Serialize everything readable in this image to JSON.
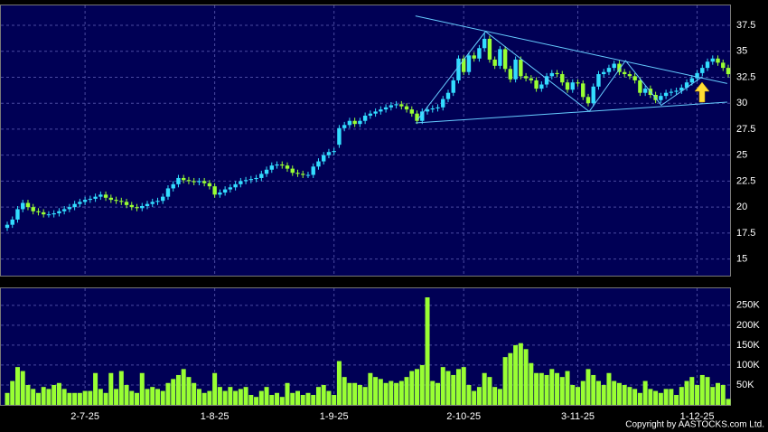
{
  "chart_data": {
    "type": "candlestick",
    "categories": [
      null,
      null,
      null,
      null,
      null,
      null,
      null,
      null,
      null,
      null,
      null,
      null,
      null,
      null,
      null,
      "2-7-25",
      null,
      null,
      null,
      null,
      null,
      null,
      null,
      null,
      null,
      null,
      null,
      null,
      null,
      null,
      null,
      null,
      null,
      null,
      null,
      null,
      null,
      null,
      null,
      null,
      "1-8-25",
      null,
      null,
      null,
      null,
      null,
      null,
      null,
      null,
      null,
      null,
      null,
      null,
      null,
      null,
      null,
      null,
      null,
      null,
      null,
      null,
      null,
      null,
      "1-9-25",
      null,
      null,
      null,
      null,
      null,
      null,
      null,
      null,
      null,
      null,
      null,
      null,
      null,
      null,
      null,
      null,
      null,
      null,
      null,
      null,
      null,
      null,
      null,
      null,
      "2-10-25",
      null,
      null,
      null,
      null,
      null,
      null,
      null,
      null,
      null,
      null,
      null,
      null,
      null,
      null,
      null,
      null,
      null,
      null,
      null,
      null,
      null,
      "3-11-25",
      null,
      null,
      null,
      null,
      null,
      null,
      null,
      null,
      null,
      null,
      null,
      null,
      null,
      null,
      null,
      null,
      null,
      null,
      null,
      null,
      null,
      null,
      "1-12-25",
      null,
      null,
      null,
      null,
      null,
      null
    ],
    "open": [
      18.0,
      18.3,
      18.8,
      19.8,
      20.4,
      20.0,
      19.6,
      19.5,
      19.3,
      19.3,
      19.4,
      19.6,
      19.8,
      20.0,
      20.3,
      20.5,
      20.7,
      20.8,
      21.0,
      21.2,
      20.9,
      20.7,
      20.6,
      20.5,
      20.2,
      20.0,
      19.9,
      20.1,
      20.3,
      20.5,
      20.6,
      21.0,
      21.8,
      22.2,
      22.8,
      22.6,
      22.5,
      22.4,
      22.5,
      22.3,
      22.0,
      21.2,
      21.4,
      21.7,
      21.9,
      22.2,
      22.5,
      22.6,
      22.7,
      22.8,
      23.2,
      23.6,
      24.0,
      24.1,
      24.0,
      23.7,
      23.3,
      23.2,
      23.1,
      23.1,
      23.9,
      24.4,
      25.0,
      25.3,
      26.0,
      27.6,
      27.9,
      28.3,
      28.0,
      28.3,
      28.8,
      29.0,
      29.2,
      29.4,
      29.6,
      29.8,
      29.9,
      29.7,
      29.4,
      29.0,
      28.3,
      29.2,
      29.4,
      29.5,
      29.6,
      30.4,
      31.0,
      32.2,
      34.3,
      33.0,
      34.6,
      34.3,
      35.3,
      36.2,
      34.2,
      33.6,
      35.2,
      33.3,
      32.3,
      34.2,
      32.6,
      32.4,
      32.2,
      31.4,
      31.8,
      32.6,
      32.9,
      32.8,
      32.0,
      31.3,
      32.0,
      31.9,
      30.6,
      30.0,
      31.6,
      32.8,
      33.0,
      33.4,
      33.8,
      33.0,
      32.8,
      32.6,
      32.2,
      31.0,
      31.4,
      30.8,
      30.3,
      30.7,
      31.0,
      31.1,
      31.2,
      31.5,
      32.0,
      32.4,
      32.9,
      33.4,
      34.0,
      34.3,
      33.9,
      33.4
    ],
    "high": [
      18.6,
      19.1,
      20.1,
      20.7,
      20.7,
      20.3,
      19.9,
      19.8,
      19.6,
      19.7,
      19.9,
      20.1,
      20.3,
      20.6,
      20.8,
      21.0,
      21.1,
      21.3,
      21.5,
      21.5,
      21.2,
      21.0,
      20.9,
      20.8,
      20.5,
      20.3,
      20.4,
      20.6,
      20.8,
      20.9,
      21.3,
      22.1,
      22.5,
      23.1,
      23.1,
      22.9,
      22.8,
      22.8,
      22.8,
      22.6,
      22.3,
      21.7,
      22.0,
      22.2,
      22.5,
      22.8,
      22.9,
      23.0,
      23.1,
      23.5,
      23.9,
      24.3,
      24.4,
      24.4,
      24.3,
      24.0,
      23.6,
      23.5,
      23.4,
      24.2,
      24.7,
      25.3,
      25.6,
      25.7,
      27.9,
      28.2,
      28.6,
      28.6,
      28.6,
      29.1,
      29.3,
      29.5,
      29.7,
      29.9,
      30.1,
      30.2,
      30.2,
      30.0,
      29.7,
      29.3,
      29.5,
      29.7,
      29.8,
      29.9,
      30.7,
      31.3,
      32.5,
      34.6,
      34.6,
      34.9,
      34.9,
      35.6,
      36.8,
      36.5,
      34.5,
      35.5,
      35.5,
      33.6,
      34.5,
      34.5,
      32.9,
      32.7,
      32.5,
      32.1,
      32.9,
      33.2,
      33.2,
      33.1,
      32.3,
      32.3,
      32.3,
      32.2,
      30.9,
      31.9,
      33.1,
      33.3,
      33.7,
      34.1,
      34.1,
      33.3,
      33.1,
      32.9,
      32.5,
      31.7,
      31.7,
      31.1,
      31.0,
      31.3,
      31.4,
      31.5,
      31.8,
      32.3,
      32.7,
      33.2,
      33.7,
      34.3,
      34.6,
      34.6,
      34.2,
      33.7
    ],
    "low": [
      17.7,
      18.0,
      18.5,
      19.5,
      19.7,
      19.3,
      19.2,
      19.0,
      19.0,
      19.0,
      19.1,
      19.3,
      19.5,
      19.7,
      20.0,
      20.2,
      20.4,
      20.5,
      20.7,
      20.6,
      20.4,
      20.3,
      20.2,
      19.9,
      19.7,
      19.6,
      19.6,
      19.8,
      20.0,
      20.2,
      20.3,
      20.7,
      21.5,
      21.9,
      22.3,
      22.2,
      22.1,
      22.1,
      22.0,
      21.7,
      20.9,
      20.9,
      21.1,
      21.4,
      21.6,
      21.9,
      22.2,
      22.3,
      22.4,
      22.5,
      22.9,
      23.3,
      23.7,
      23.7,
      23.4,
      23.0,
      22.9,
      22.8,
      22.8,
      22.8,
      23.6,
      24.1,
      24.7,
      25.0,
      25.7,
      27.3,
      27.6,
      27.7,
      27.7,
      28.0,
      28.5,
      28.7,
      28.9,
      29.1,
      29.3,
      29.5,
      29.4,
      29.1,
      28.7,
      28.0,
      28.0,
      28.9,
      29.1,
      29.2,
      29.3,
      30.1,
      30.7,
      31.9,
      32.7,
      32.7,
      34.0,
      34.0,
      35.0,
      33.9,
      33.3,
      33.3,
      33.0,
      32.0,
      32.0,
      32.3,
      32.1,
      31.9,
      31.1,
      31.1,
      31.5,
      32.3,
      32.5,
      31.7,
      31.0,
      31.0,
      31.6,
      30.3,
      29.7,
      29.7,
      31.3,
      32.5,
      32.7,
      33.1,
      32.7,
      32.5,
      32.3,
      31.9,
      30.7,
      30.7,
      30.5,
      30.0,
      30.0,
      30.4,
      30.7,
      30.8,
      30.9,
      31.2,
      31.7,
      32.1,
      32.6,
      33.1,
      33.7,
      33.6,
      33.1,
      32.5
    ],
    "close": [
      18.3,
      18.8,
      19.8,
      20.4,
      20.0,
      19.6,
      19.5,
      19.3,
      19.3,
      19.4,
      19.6,
      19.8,
      20.0,
      20.3,
      20.5,
      20.7,
      20.8,
      21.0,
      21.2,
      20.9,
      20.7,
      20.6,
      20.5,
      20.2,
      20.0,
      19.9,
      20.1,
      20.3,
      20.5,
      20.6,
      21.0,
      21.8,
      22.2,
      22.8,
      22.6,
      22.5,
      22.4,
      22.5,
      22.3,
      22.0,
      21.2,
      21.4,
      21.7,
      21.9,
      22.2,
      22.5,
      22.6,
      22.7,
      22.8,
      23.2,
      23.6,
      24.0,
      24.1,
      24.0,
      23.7,
      23.3,
      23.2,
      23.1,
      23.1,
      23.9,
      24.4,
      25.0,
      25.3,
      25.4,
      27.6,
      27.9,
      28.3,
      28.0,
      28.3,
      28.8,
      29.0,
      29.2,
      29.4,
      29.6,
      29.8,
      29.9,
      29.7,
      29.4,
      29.0,
      28.3,
      29.2,
      29.4,
      29.5,
      29.6,
      30.4,
      31.0,
      32.2,
      34.3,
      33.0,
      34.6,
      34.3,
      35.3,
      36.2,
      34.2,
      33.6,
      35.2,
      33.3,
      32.3,
      34.2,
      32.6,
      32.4,
      32.2,
      31.4,
      31.8,
      32.6,
      32.9,
      32.8,
      32.0,
      31.3,
      32.0,
      31.9,
      30.6,
      30.0,
      31.6,
      32.8,
      33.0,
      33.4,
      33.8,
      33.0,
      32.8,
      32.6,
      32.2,
      31.0,
      31.4,
      30.8,
      30.3,
      30.7,
      31.0,
      31.1,
      31.2,
      31.5,
      32.0,
      32.4,
      32.9,
      33.4,
      34.0,
      34.3,
      33.9,
      33.4,
      32.8
    ],
    "volume": [
      30000,
      60000,
      95000,
      85000,
      50000,
      40000,
      30000,
      45000,
      40000,
      50000,
      55000,
      40000,
      30000,
      30000,
      30000,
      35000,
      35000,
      80000,
      40000,
      30000,
      80000,
      40000,
      85000,
      50000,
      35000,
      30000,
      80000,
      40000,
      45000,
      40000,
      35000,
      55000,
      65000,
      75000,
      90000,
      70000,
      55000,
      40000,
      30000,
      35000,
      80000,
      45000,
      35000,
      45000,
      35000,
      40000,
      45000,
      25000,
      20000,
      35000,
      45000,
      25000,
      30000,
      20000,
      55000,
      30000,
      35000,
      25000,
      30000,
      25000,
      45000,
      50000,
      35000,
      25000,
      110000,
      70000,
      55000,
      55000,
      50000,
      45000,
      80000,
      70000,
      65000,
      55000,
      60000,
      55000,
      60000,
      70000,
      85000,
      90000,
      100000,
      270000,
      60000,
      55000,
      95000,
      85000,
      75000,
      90000,
      95000,
      50000,
      35000,
      45000,
      80000,
      70000,
      45000,
      40000,
      120000,
      130000,
      150000,
      155000,
      140000,
      105000,
      80000,
      80000,
      75000,
      90000,
      80000,
      70000,
      85000,
      50000,
      45000,
      60000,
      90000,
      75000,
      60000,
      50000,
      80000,
      60000,
      55000,
      50000,
      45000,
      40000,
      30000,
      60000,
      40000,
      35000,
      30000,
      40000,
      40000,
      25000,
      45000,
      60000,
      70000,
      50000,
      75000,
      70000,
      45000,
      55000,
      50000,
      15000
    ],
    "up_color": "#33ddff",
    "down_color": "#99ff33",
    "volume_color": "#99ff33",
    "trendline_color": "#66ccff",
    "ylim": [
      13.4,
      39.5
    ],
    "yticks": [
      15,
      17.5,
      20,
      22.5,
      25,
      27.5,
      30,
      32.5,
      35,
      37.5
    ],
    "y2lim": [
      0,
      295000
    ],
    "y2ticks": [
      {
        "value": 50000,
        "label": "50K"
      },
      {
        "value": 100000,
        "label": "100K"
      },
      {
        "value": 150000,
        "label": "150K"
      },
      {
        "value": 200000,
        "label": "200K"
      },
      {
        "value": 250000,
        "label": "250K"
      }
    ],
    "grid": true,
    "trendlines": [
      {
        "x": [
          78.7,
          138.8
        ],
        "y": [
          38.4,
          31.9
        ]
      },
      {
        "x": [
          78.7,
          138.8
        ],
        "y": [
          28.1,
          30.1
        ]
      },
      {
        "x": [
          79.1,
          92.2,
          112.2,
          119.2,
          126.1,
          134
        ],
        "y": [
          28.4,
          36.9,
          29.2,
          34.1,
          29.8,
          32.55
        ]
      }
    ],
    "copyright": "Copyright by AASTOCKS.com Ltd."
  }
}
